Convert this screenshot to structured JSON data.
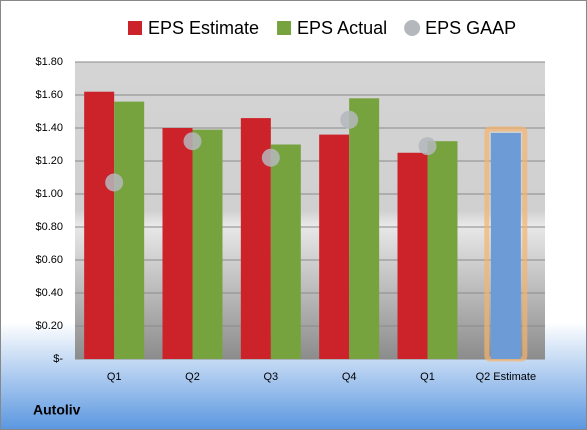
{
  "chart_data": {
    "type": "bar",
    "title": "Autoliv",
    "categories": [
      "Q1",
      "Q2",
      "Q3",
      "Q4",
      "Q1",
      "Q2 Estimate"
    ],
    "series": [
      {
        "name": "EPS Estimate",
        "color": "#cc2229",
        "values": [
          1.62,
          1.4,
          1.46,
          1.36,
          1.25,
          1.37
        ],
        "point_colors": [
          null,
          null,
          null,
          null,
          null,
          "#6d9bd6"
        ]
      },
      {
        "name": "EPS Actual",
        "color": "#77a33f",
        "values": [
          1.56,
          1.39,
          1.3,
          1.58,
          1.32,
          null
        ]
      },
      {
        "name": "EPS GAAP",
        "color": "#b4b8bd",
        "type": "scatter",
        "values": [
          1.07,
          1.32,
          1.22,
          1.45,
          1.29,
          null
        ]
      }
    ],
    "ylim": [
      0,
      1.8
    ],
    "yticks": [
      {
        "value": 0,
        "label": "$-"
      },
      {
        "value": 0.2,
        "label": "$0.20"
      },
      {
        "value": 0.4,
        "label": "$0.40"
      },
      {
        "value": 0.6,
        "label": "$0.60"
      },
      {
        "value": 0.8,
        "label": "$0.80"
      },
      {
        "value": 1.0,
        "label": "$1.00"
      },
      {
        "value": 1.2,
        "label": "$1.20"
      },
      {
        "value": 1.4,
        "label": "$1.40"
      },
      {
        "value": 1.6,
        "label": "$1.60"
      },
      {
        "value": 1.8,
        "label": "$1.80"
      }
    ],
    "grid": true,
    "legend": "top"
  }
}
